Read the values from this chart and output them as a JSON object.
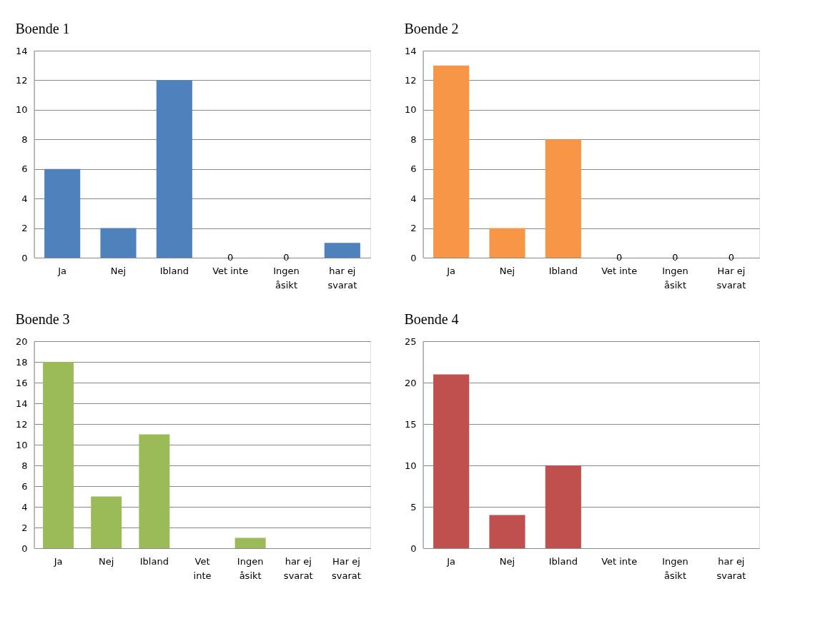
{
  "chart_data": [
    {
      "type": "bar",
      "title": "Boende 1",
      "categories": [
        "Ja",
        "Nej",
        "Ibland",
        "Vet inte",
        "Ingen åsikt",
        "har ej svarat"
      ],
      "values": [
        6,
        2,
        12,
        0,
        0,
        1
      ],
      "value_labels": [
        null,
        null,
        null,
        "0",
        "0",
        null
      ],
      "color": "#4f81bd",
      "ylim": [
        0,
        14
      ],
      "yticks": [
        0,
        2,
        4,
        6,
        8,
        10,
        12,
        14
      ],
      "grid": "y"
    },
    {
      "type": "bar",
      "title": "Boende 2",
      "categories": [
        "Ja",
        "Nej",
        "Ibland",
        "Vet inte",
        "Ingen åsikt",
        "Har ej svarat"
      ],
      "values": [
        13,
        2,
        8,
        0,
        0,
        0
      ],
      "value_labels": [
        null,
        null,
        null,
        "0",
        "0",
        "0"
      ],
      "color": "#f79646",
      "ylim": [
        0,
        14
      ],
      "yticks": [
        0,
        2,
        4,
        6,
        8,
        10,
        12,
        14
      ],
      "grid": "y"
    },
    {
      "type": "bar",
      "title": "Boende 3",
      "categories": [
        "Ja",
        "Nej",
        "Ibland",
        "Vet inte",
        "Ingen åsikt",
        "har ej svarat",
        "Har ej svarat"
      ],
      "values": [
        18,
        5,
        11,
        0,
        1,
        0,
        0
      ],
      "color": "#9bbb59",
      "ylim": [
        0,
        20
      ],
      "yticks": [
        0,
        2,
        4,
        6,
        8,
        10,
        12,
        14,
        16,
        18,
        20
      ],
      "grid": "y"
    },
    {
      "type": "bar",
      "title": "Boende 4",
      "categories": [
        "Ja",
        "Nej",
        "Ibland",
        "Vet inte",
        "Ingen åsikt",
        "har ej svarat"
      ],
      "values": [
        21,
        4,
        10,
        0,
        0,
        0
      ],
      "color": "#c0504d",
      "ylim": [
        0,
        25
      ],
      "yticks": [
        0,
        5,
        10,
        15,
        20,
        25
      ],
      "grid": "y"
    }
  ]
}
